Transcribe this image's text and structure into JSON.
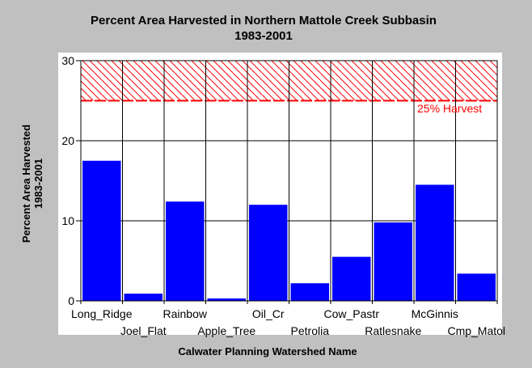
{
  "chart_data": {
    "type": "bar",
    "title": "Percent Area Harvested in Northern Mattole Creek Subbasin",
    "subtitle": "1983-2001",
    "xlabel": "Calwater Planning Watershed Name",
    "ylabel": "Percent Area Harvested",
    "ylabel2": "1983-2001",
    "ylim": [
      0,
      30
    ],
    "yticks": [
      "0",
      "10",
      "20",
      "30"
    ],
    "grid": true,
    "categories": [
      "Long_Ridge",
      "Joel_Flat",
      "Rainbow",
      "Apple_Tree",
      "Oil_Cr",
      "Petrolia",
      "Cow_Pastr",
      "Ratlesnake",
      "McGinnis",
      "Cmp_Matol"
    ],
    "values": [
      17.5,
      0.9,
      12.4,
      0.3,
      12.0,
      2.2,
      5.5,
      9.8,
      14.5,
      3.4
    ],
    "threshold": {
      "label": "25% Harvest",
      "value": 25,
      "band_top": 30
    },
    "colors": {
      "bar": "#0000ff",
      "threshold": "#ff0000",
      "plot_bg": "#ffffff",
      "page_bg": "#c0c0c0"
    }
  }
}
